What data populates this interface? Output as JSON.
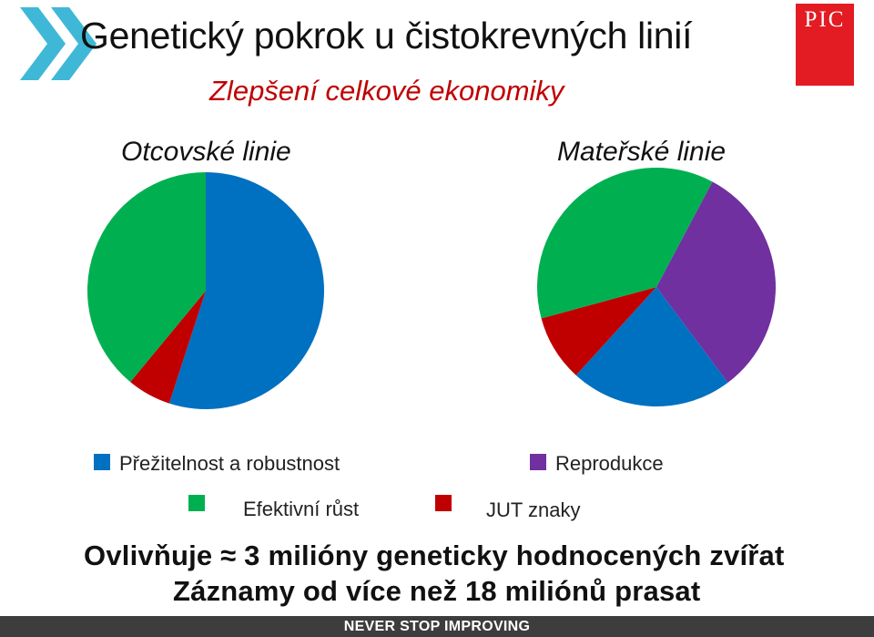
{
  "header": {
    "title": "Genetický pokrok u čistokrevných linií",
    "subtitle": "Zlepšení celkové ekonomiky",
    "logo_text": "PIC",
    "logo_color": "#e31b23",
    "chevron_icon": "double-chevron-right-icon",
    "chevron_color": "#3fb8d8"
  },
  "chart_data": [
    {
      "type": "pie",
      "title": "Otcovské linie",
      "slices": [
        {
          "label": "Přežitelnost a robustnost",
          "value": 55,
          "color": "#0070c0"
        },
        {
          "label": "JUT znaky",
          "value": 6,
          "color": "#c00000"
        },
        {
          "label": "Efektivní růst",
          "value": 39,
          "color": "#00b050"
        }
      ]
    },
    {
      "type": "pie",
      "title": "Mateřské linie",
      "slices": [
        {
          "label": "Reprodukce",
          "value": 32,
          "color": "#7030a0"
        },
        {
          "label": "Přežitelnost a robustnost",
          "value": 22,
          "color": "#0070c0"
        },
        {
          "label": "JUT znaky",
          "value": 9,
          "color": "#c00000"
        },
        {
          "label": "Efektivní růst",
          "value": 37,
          "color": "#00b050"
        }
      ]
    }
  ],
  "legend": [
    {
      "label": "Přežitelnost a robustnost",
      "color": "#0070c0"
    },
    {
      "label": "Reprodukce",
      "color": "#7030a0"
    },
    {
      "label": "Efektivní růst",
      "color": "#00b050"
    },
    {
      "label": "JUT znaky",
      "color": "#c00000"
    }
  ],
  "footer": {
    "line1": "Ovlivňuje ≈ 3 milióny geneticky hodnocených zvířat",
    "line2": "Záznamy od více než 18 miliónů prasat",
    "bar_text": "NEVER STOP IMPROVING"
  }
}
